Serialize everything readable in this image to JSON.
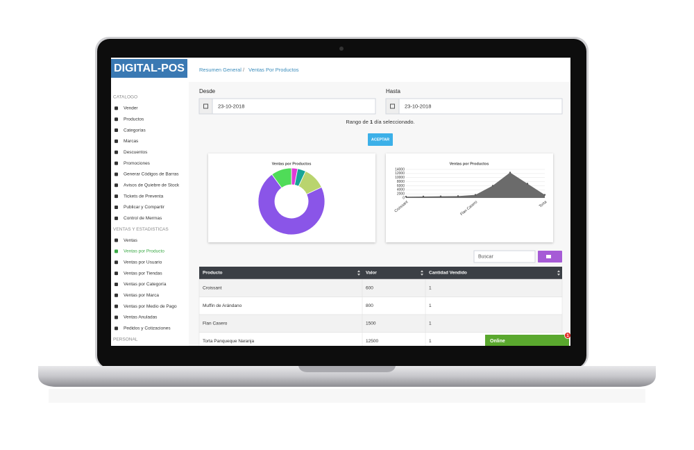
{
  "sidebar": {
    "logo": "DIGITAL-POS",
    "sections": [
      {
        "title": "CATALOGO",
        "items": [
          {
            "label": "Vender"
          },
          {
            "label": "Productos"
          },
          {
            "label": "Categorías"
          },
          {
            "label": "Marcas"
          },
          {
            "label": "Descuentos"
          },
          {
            "label": "Promociones"
          },
          {
            "label": "Generar Códigos de Barras"
          },
          {
            "label": "Avisos de Quiebre de Stock"
          },
          {
            "label": "Tickets de Preventa"
          },
          {
            "label": "Publicar y Compartir"
          },
          {
            "label": "Control de Mermas"
          }
        ]
      },
      {
        "title": "VENTAS Y ESTADISTICAS",
        "items": [
          {
            "label": "Ventas"
          },
          {
            "label": "Ventas por Producto",
            "active": true
          },
          {
            "label": "Ventas por Usuario"
          },
          {
            "label": "Ventas por Tiendas"
          },
          {
            "label": "Ventas por Categoría"
          },
          {
            "label": "Ventas por Marca"
          },
          {
            "label": "Ventas por Medio de Pago"
          },
          {
            "label": "Ventas Anuladas"
          },
          {
            "label": "Pedidos y Cotizaciones"
          }
        ]
      },
      {
        "title": "PERSONAL"
      }
    ]
  },
  "breadcrumb": [
    "Resumen General",
    "Ventas Por Productos"
  ],
  "filters": {
    "from_label": "Desde",
    "from_value": "23-10-2018",
    "to_label": "Hasta",
    "to_value": "23-10-2018",
    "range_text": [
      "Rango de ",
      "1",
      " día seleccionado."
    ],
    "button": "ACEPTAR"
  },
  "chart_data": [
    {
      "type": "pie",
      "donut": true,
      "title": "Ventas por Productos",
      "values": [
        3,
        4,
        11,
        72,
        10
      ],
      "colors": [
        "#e03ad6",
        "#17a596",
        "#b9d46e",
        "#8a55e8",
        "#4fdc58"
      ]
    },
    {
      "type": "area",
      "title": "Ventas por Productos",
      "categories": [
        "Croissant",
        null,
        null,
        null,
        "Flan Casero",
        null,
        null,
        null,
        "Torta"
      ],
      "values": [
        600,
        700,
        800,
        900,
        1500,
        6000,
        12500,
        7000,
        1500
      ],
      "color": "#6b6b6b",
      "ylim": [
        0,
        14000
      ],
      "yticks": [
        0,
        2000,
        4000,
        6000,
        8000,
        10000,
        12000,
        14000
      ],
      "grid": true
    }
  ],
  "search_placeholder": "Buscar",
  "table": {
    "columns": [
      "Producto",
      "Valor",
      "Cantidad Vendido"
    ],
    "rows": [
      [
        "Croissant",
        600,
        1
      ],
      [
        "Muffin de Arándano",
        800,
        1
      ],
      [
        "Flan Casero",
        1500,
        1
      ],
      [
        "Torta Panqueque Naranja",
        12500,
        1
      ]
    ]
  },
  "status": "Online",
  "badge": 1
}
